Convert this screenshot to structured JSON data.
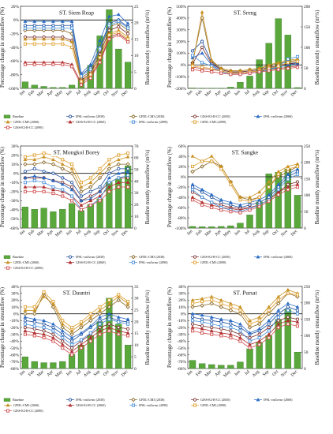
{
  "figure": {
    "months": [
      "Jan",
      "Feb",
      "Mar",
      "Apr",
      "May",
      "Jun",
      "Jul",
      "Aug",
      "Sep",
      "Oct",
      "Nov",
      "Dec"
    ],
    "baseline_color": "#5aa83c",
    "legend": {
      "baseline": "Baseline",
      "entries": [
        {
          "key": "ipsl_2030",
          "label": "IPSL-cm5a-mr (2030)",
          "color": "#1f4e9c",
          "marker": "circle"
        },
        {
          "key": "gfdl_2030",
          "label": "GFDL-CM3 (2030)",
          "color": "#8a6a2c",
          "marker": "diamond"
        },
        {
          "key": "giss_2030",
          "label": "GISS-E2-R-CC (2030)",
          "color": "#7a2e2e",
          "marker": "circle"
        },
        {
          "key": "ipsl_2060",
          "label": "IPSL-cm5a-mr (2060)",
          "color": "#2b6cc4",
          "marker": "triangle"
        },
        {
          "key": "gfdl_2060",
          "label": "GFDL-CM3 (2060)",
          "color": "#c99224",
          "marker": "triangle"
        },
        {
          "key": "giss_2060",
          "label": "GISS-E2-R-CC (2060)",
          "color": "#b03030",
          "marker": "triangle"
        },
        {
          "key": "ipsl_2090",
          "label": "IPSL-cm5a-mr (2090)",
          "color": "#4a90d9",
          "marker": "square"
        },
        {
          "key": "gfdl_2090",
          "label": "GFDL-CM3 (2090)",
          "color": "#e0a030",
          "marker": "square"
        },
        {
          "key": "giss_2090",
          "label": "GISS-E2-R-CC (2090)",
          "color": "#d05050",
          "marker": "square"
        }
      ]
    },
    "left_axis_label": "Percentage change in streamflow (%)",
    "right_axis_label": "Baseline montly streamflow (m³/s)"
  },
  "chart_data": [
    {
      "type": "bar+line",
      "title": "ST. Siem Reap",
      "ylim_left": [
        -100,
        20
      ],
      "left_ticks": [
        20,
        0,
        -20,
        -40,
        -60,
        -80,
        -100
      ],
      "ylim_right": [
        0,
        25
      ],
      "right_ticks": [
        0,
        5,
        10,
        15,
        20,
        25
      ],
      "baseline": [
        2,
        1,
        0.6,
        0.3,
        0.3,
        1,
        3,
        7,
        16,
        24,
        12,
        8
      ],
      "series": {
        "ipsl_2030": [
          -8,
          -8,
          -8,
          -8,
          -8,
          -8,
          -80,
          -70,
          -40,
          -5,
          0,
          -10
        ],
        "gfdl_2030": [
          -15,
          -15,
          -15,
          -15,
          -15,
          -20,
          -85,
          -75,
          -45,
          -10,
          -5,
          -15
        ],
        "giss_2030": [
          -25,
          -25,
          -25,
          -25,
          -25,
          -30,
          -88,
          -78,
          -50,
          -15,
          -10,
          -20
        ],
        "ipsl_2060": [
          -2,
          -2,
          -2,
          -2,
          -2,
          -2,
          -78,
          -65,
          -30,
          5,
          8,
          -5
        ],
        "gfdl_2060": [
          -28,
          -28,
          -28,
          -28,
          -28,
          -32,
          -90,
          -80,
          -55,
          -20,
          -15,
          -25
        ],
        "giss_2060": [
          -62,
          -62,
          -62,
          -62,
          -62,
          -65,
          -92,
          -82,
          -60,
          -25,
          -20,
          -30
        ],
        "ipsl_2090": [
          -12,
          -12,
          -12,
          -12,
          -12,
          -12,
          -82,
          -72,
          -42,
          -8,
          -2,
          -12
        ],
        "gfdl_2090": [
          -35,
          -35,
          -35,
          -35,
          -35,
          -40,
          -90,
          -80,
          -55,
          -22,
          -18,
          -28
        ],
        "giss_2090": [
          -65,
          -65,
          -65,
          -65,
          -65,
          -68,
          -95,
          -85,
          -62,
          -28,
          -22,
          -32
        ]
      }
    },
    {
      "type": "bar+line",
      "title": "ST. Sreng",
      "ylim_left": [
        -200,
        500
      ],
      "left_ticks": [
        500,
        400,
        300,
        200,
        100,
        0,
        -100,
        -200
      ],
      "ylim_right": [
        0,
        200
      ],
      "right_ticks": [
        0,
        50,
        100,
        150,
        200
      ],
      "baseline": [
        1,
        0.5,
        0.5,
        0.5,
        3,
        15,
        30,
        70,
        110,
        170,
        130,
        2
      ],
      "series": {
        "ipsl_2030": [
          120,
          200,
          20,
          -40,
          -60,
          -60,
          -50,
          -40,
          -20,
          -10,
          10,
          20
        ],
        "gfdl_2030": [
          20,
          400,
          30,
          -30,
          -50,
          -50,
          -40,
          -30,
          -10,
          10,
          30,
          40
        ],
        "giss_2030": [
          10,
          150,
          10,
          -40,
          -60,
          -60,
          -50,
          -40,
          -20,
          -10,
          10,
          10
        ],
        "ipsl_2060": [
          60,
          100,
          0,
          -50,
          -70,
          -70,
          -60,
          -50,
          -30,
          -20,
          0,
          10
        ],
        "gfdl_2060": [
          10,
          450,
          40,
          -30,
          -50,
          -50,
          -40,
          -30,
          0,
          20,
          40,
          50
        ],
        "giss_2060": [
          -20,
          -30,
          -40,
          -50,
          -70,
          -70,
          -60,
          -50,
          -40,
          -30,
          -20,
          -10
        ],
        "ipsl_2090": [
          80,
          20,
          -10,
          -60,
          -80,
          -80,
          -70,
          -60,
          -40,
          -20,
          50,
          70
        ],
        "gfdl_2090": [
          -10,
          -20,
          -30,
          -50,
          -70,
          -70,
          -60,
          -50,
          -30,
          -10,
          20,
          30
        ],
        "giss_2090": [
          -40,
          -50,
          -60,
          -70,
          -80,
          -80,
          -70,
          -60,
          -50,
          -40,
          -30,
          -20
        ]
      }
    },
    {
      "type": "bar+line",
      "title": "ST. Mongkol Borey",
      "ylim_left": [
        -60,
        30
      ],
      "left_ticks": [
        30,
        20,
        10,
        0,
        -10,
        -20,
        -30,
        -40,
        -50,
        -60
      ],
      "ylim_right": [
        0,
        70
      ],
      "right_ticks": [
        0,
        10,
        20,
        30,
        40,
        50,
        60,
        70
      ],
      "baseline": [
        18,
        16,
        17,
        14,
        16,
        21,
        15,
        20,
        25,
        39,
        42,
        53
      ],
      "series": {
        "ipsl_2030": [
          2,
          5,
          2,
          0,
          -5,
          -10,
          -25,
          -20,
          -15,
          0,
          5,
          5
        ],
        "gfdl_2030": [
          10,
          10,
          12,
          10,
          5,
          0,
          -20,
          -15,
          -5,
          5,
          10,
          10
        ],
        "giss_2030": [
          -5,
          -5,
          -5,
          -8,
          -10,
          -15,
          -30,
          -25,
          -20,
          -10,
          -5,
          -5
        ],
        "ipsl_2060": [
          -5,
          -3,
          -5,
          -8,
          -12,
          -18,
          -30,
          -28,
          -20,
          -5,
          0,
          2
        ],
        "gfdl_2060": [
          15,
          15,
          18,
          15,
          10,
          5,
          -15,
          -10,
          0,
          10,
          15,
          18
        ],
        "giss_2060": [
          -15,
          -15,
          -15,
          -18,
          -20,
          -25,
          -35,
          -30,
          -25,
          -15,
          -10,
          -10
        ],
        "ipsl_2090": [
          -10,
          -8,
          -10,
          -15,
          -18,
          -25,
          -40,
          -35,
          -28,
          -10,
          -5,
          -2
        ],
        "gfdl_2090": [
          18,
          20,
          22,
          20,
          15,
          10,
          -10,
          -5,
          5,
          15,
          20,
          22
        ],
        "giss_2090": [
          -20,
          -20,
          -20,
          -22,
          -25,
          -30,
          -40,
          -35,
          -30,
          -20,
          -15,
          -15
        ]
      }
    },
    {
      "type": "bar+line",
      "title": "ST. Sangke",
      "ylim_left": [
        -100,
        60
      ],
      "left_ticks": [
        60,
        40,
        20,
        0,
        -20,
        -40,
        -60,
        -80,
        -100
      ],
      "ylim_right": [
        0,
        250
      ],
      "right_ticks": [
        0,
        50,
        100,
        150,
        200,
        250
      ],
      "baseline": [
        5,
        4,
        4,
        5,
        7,
        15,
        40,
        80,
        165,
        170,
        180,
        100
      ],
      "series": {
        "ipsl_2030": [
          -20,
          -30,
          -40,
          -50,
          -55,
          -60,
          -55,
          -50,
          -40,
          -20,
          0,
          10
        ],
        "gfdl_2030": [
          10,
          20,
          30,
          20,
          -10,
          -40,
          -45,
          -40,
          -20,
          0,
          10,
          20
        ],
        "giss_2030": [
          -30,
          -40,
          -50,
          -55,
          -60,
          -62,
          -60,
          -55,
          -45,
          -30,
          -15,
          -10
        ],
        "ipsl_2060": [
          -15,
          -25,
          -35,
          -45,
          -50,
          -55,
          -50,
          -45,
          -35,
          -15,
          5,
          15
        ],
        "gfdl_2060": [
          40,
          30,
          40,
          20,
          -10,
          -40,
          -40,
          -30,
          -10,
          10,
          20,
          25
        ],
        "giss_2060": [
          -40,
          -50,
          -55,
          -60,
          -62,
          -65,
          -60,
          -55,
          -45,
          -30,
          -20,
          -15
        ],
        "ipsl_2090": [
          -25,
          -40,
          -50,
          -60,
          -65,
          -68,
          -62,
          -55,
          -45,
          -25,
          -5,
          5
        ],
        "gfdl_2090": [
          20,
          30,
          30,
          15,
          -15,
          -45,
          -48,
          -40,
          -20,
          5,
          15,
          20
        ],
        "giss_2090": [
          -45,
          -55,
          -60,
          -65,
          -68,
          -70,
          -65,
          -58,
          -48,
          -35,
          -25,
          -20
        ]
      }
    },
    {
      "type": "bar+line",
      "title": "ST. Dauntri",
      "ylim_left": [
        -80,
        40
      ],
      "left_ticks": [
        40,
        30,
        20,
        10,
        0,
        -10,
        -20,
        -30,
        -40,
        -50,
        -60,
        -70,
        -80
      ],
      "ylim_right": [
        0,
        35
      ],
      "right_ticks": [
        0,
        5,
        10,
        15,
        20,
        25,
        30,
        35
      ],
      "baseline": [
        5,
        3,
        2.5,
        2.5,
        3,
        6,
        10,
        14,
        20,
        30,
        19,
        10
      ],
      "series": {
        "ipsl_2030": [
          -10,
          -12,
          -15,
          -20,
          -30,
          -40,
          -30,
          -20,
          -10,
          -5,
          -10,
          -12
        ],
        "gfdl_2030": [
          0,
          0,
          30,
          10,
          -20,
          -30,
          -20,
          -10,
          0,
          10,
          20,
          10
        ],
        "giss_2030": [
          -20,
          -22,
          -25,
          -30,
          -40,
          -50,
          -40,
          -30,
          -20,
          -15,
          -20,
          -22
        ],
        "ipsl_2060": [
          -5,
          -8,
          -10,
          -15,
          -25,
          -35,
          -28,
          -18,
          -5,
          0,
          -5,
          -8
        ],
        "gfdl_2060": [
          5,
          5,
          25,
          15,
          -15,
          -25,
          -15,
          -5,
          5,
          15,
          25,
          15
        ],
        "giss_2060": [
          -25,
          -28,
          -30,
          -35,
          -45,
          -55,
          -45,
          -35,
          -25,
          -20,
          -25,
          -28
        ],
        "ipsl_2090": [
          -15,
          -18,
          -20,
          -25,
          -35,
          -45,
          -38,
          -28,
          -15,
          -8,
          -12,
          -15
        ],
        "gfdl_2090": [
          10,
          10,
          32,
          18,
          -10,
          -20,
          -12,
          0,
          10,
          20,
          28,
          18
        ],
        "giss_2090": [
          -30,
          -32,
          -35,
          -40,
          -50,
          -60,
          -50,
          -40,
          -30,
          -25,
          -30,
          -32
        ]
      }
    },
    {
      "type": "bar+line",
      "title": "ST. Pursat",
      "ylim_left": [
        -80,
        40
      ],
      "left_ticks": [
        40,
        30,
        20,
        10,
        0,
        -10,
        -20,
        -30,
        -40,
        -50,
        -60,
        -70,
        -80
      ],
      "ylim_right": [
        0,
        250
      ],
      "right_ticks": [
        0,
        50,
        100,
        150,
        200,
        250
      ],
      "baseline": [
        25,
        15,
        12,
        10,
        10,
        20,
        60,
        80,
        100,
        150,
        180,
        50
      ],
      "series": {
        "ipsl_2030": [
          -5,
          -8,
          -10,
          -12,
          -15,
          -20,
          -30,
          -25,
          -15,
          0,
          10,
          5
        ],
        "gfdl_2030": [
          10,
          12,
          15,
          10,
          5,
          0,
          -20,
          -15,
          0,
          15,
          30,
          25
        ],
        "giss_2030": [
          -15,
          -18,
          -20,
          -22,
          -25,
          -30,
          -35,
          -30,
          -20,
          -10,
          -5,
          -8
        ],
        "ipsl_2060": [
          0,
          -2,
          -5,
          -8,
          -10,
          -15,
          -28,
          -22,
          -10,
          5,
          15,
          10
        ],
        "gfdl_2060": [
          20,
          22,
          25,
          20,
          15,
          10,
          -10,
          -5,
          10,
          25,
          35,
          30
        ],
        "giss_2060": [
          -20,
          -22,
          -25,
          -28,
          -30,
          -35,
          -45,
          -40,
          -30,
          -15,
          -10,
          -12
        ],
        "ipsl_2090": [
          -10,
          -12,
          -15,
          -18,
          -20,
          -25,
          -40,
          -35,
          -25,
          -5,
          5,
          0
        ],
        "gfdl_2090": [
          15,
          18,
          20,
          15,
          10,
          5,
          -15,
          -10,
          5,
          20,
          30,
          28
        ],
        "giss_2090": [
          -25,
          -28,
          -30,
          -32,
          -35,
          -40,
          -50,
          -45,
          -35,
          -20,
          -15,
          -18
        ]
      }
    }
  ]
}
